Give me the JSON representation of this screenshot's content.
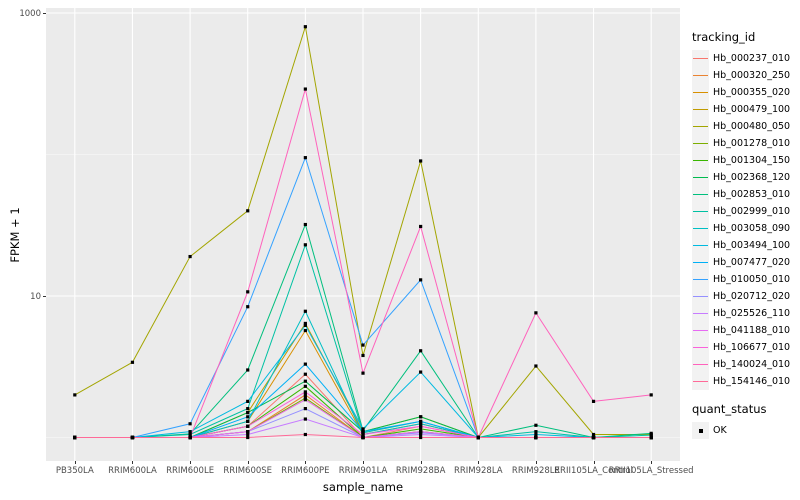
{
  "figure": {
    "y_ticks": [
      "1000",
      "10"
    ],
    "y_tick_values": [
      1000,
      10
    ]
  },
  "colors": {
    "panel_background": "#EBEBEB",
    "grid_major": "#FFFFFF",
    "grid_minor": "#F7F7F7",
    "point": "#000000",
    "axis_text": "#4D4D4D",
    "tick_mark": "#333333"
  },
  "chart_data": {
    "type": "line",
    "title": "",
    "xlabel": "sample_name",
    "ylabel": "FPKM + 1",
    "yscale": "log10",
    "ylim": [
      0.85,
      1200
    ],
    "yticks_labeled": [
      10,
      1000
    ],
    "grid_minor_at": [
      1,
      100
    ],
    "grid": "on",
    "point_shape": "small-black-square",
    "legend": {
      "title": "tracking_id",
      "position": "right"
    },
    "quant_legend": {
      "title": "quant_status",
      "items": [
        "OK"
      ]
    },
    "x": [
      "PB350LA",
      "RRIM600LA",
      "RRIM600LE",
      "RRIM600SE",
      "RRIM600PE",
      "RRIM901LA",
      "RRIM928BA",
      "RRIM928LA",
      "RRIM928LE",
      "RRII105LA_Control",
      "RRII105LA_Stressed"
    ],
    "series": [
      {
        "name": "Hb_000237_010",
        "color": "#F8766D",
        "values": [
          1,
          1,
          1,
          1.2,
          2.8,
          1,
          1.2,
          1,
          1,
          1,
          1
        ]
      },
      {
        "name": "Hb_000320_250",
        "color": "#EA8331",
        "values": [
          1,
          1,
          1,
          1.1,
          2.0,
          1,
          1.1,
          1,
          1,
          1,
          1
        ]
      },
      {
        "name": "Hb_000355_020",
        "color": "#D89000",
        "values": [
          1,
          1,
          1,
          1.3,
          5.7,
          1.05,
          1.25,
          1,
          1,
          1,
          1
        ]
      },
      {
        "name": "Hb_000479_100",
        "color": "#C09B00",
        "values": [
          1,
          1,
          1,
          1.5,
          6.4,
          1.1,
          1.4,
          1,
          1,
          1,
          1
        ]
      },
      {
        "name": "Hb_000480_050",
        "color": "#A3A500",
        "values": [
          2.0,
          3.4,
          19,
          40,
          800,
          3.8,
          90,
          1,
          3.2,
          1.05,
          1.05
        ]
      },
      {
        "name": "Hb_001278_010",
        "color": "#7CAE00",
        "values": [
          1,
          1,
          1,
          1.1,
          1.9,
          1,
          1.1,
          1,
          1,
          1,
          1
        ]
      },
      {
        "name": "Hb_001304_150",
        "color": "#39B600",
        "values": [
          1,
          1,
          1,
          1.2,
          2.3,
          1,
          1.15,
          1,
          1,
          1,
          1
        ]
      },
      {
        "name": "Hb_002368_120",
        "color": "#00BB4E",
        "values": [
          1,
          1,
          1,
          1.5,
          2.5,
          1.1,
          1.4,
          1,
          1,
          1,
          1
        ]
      },
      {
        "name": "Hb_002853_010",
        "color": "#00BF7D",
        "values": [
          1,
          1,
          1.06,
          3.0,
          32,
          1.12,
          4.1,
          1,
          1.22,
          1,
          1.07
        ]
      },
      {
        "name": "Hb_002999_010",
        "color": "#00C1A3",
        "values": [
          1,
          1,
          1.05,
          1.6,
          23,
          1.08,
          1.3,
          1,
          1.1,
          1,
          1.04
        ]
      },
      {
        "name": "Hb_003058_090",
        "color": "#00BFC4",
        "values": [
          1,
          1,
          1,
          1.3,
          7.8,
          1.05,
          1.25,
          1,
          1,
          1,
          1
        ]
      },
      {
        "name": "Hb_003494_100",
        "color": "#00BAE0",
        "values": [
          1,
          1,
          1.1,
          1.8,
          6.2,
          1.15,
          2.9,
          1,
          1.05,
          1,
          1
        ]
      },
      {
        "name": "Hb_007477_020",
        "color": "#00B0F6",
        "values": [
          1,
          1,
          1,
          1.4,
          3.3,
          1.1,
          1.3,
          1,
          1,
          1,
          1
        ]
      },
      {
        "name": "Hb_010050_010",
        "color": "#35A2FF",
        "values": [
          1,
          1,
          1.25,
          8.4,
          95,
          4.5,
          13,
          1,
          1,
          1,
          1
        ]
      },
      {
        "name": "Hb_020712_020",
        "color": "#9590FF",
        "values": [
          1,
          1,
          1,
          1.1,
          1.6,
          1,
          1.08,
          1,
          1,
          1,
          1
        ]
      },
      {
        "name": "Hb_025526_110",
        "color": "#C77CFF",
        "values": [
          1,
          1,
          1,
          1.05,
          1.35,
          1,
          1.05,
          1,
          1,
          1,
          1
        ]
      },
      {
        "name": "Hb_041188_010",
        "color": "#E76BF3",
        "values": [
          1,
          1,
          1,
          1.1,
          1.85,
          1,
          1.1,
          1,
          1,
          1,
          1
        ]
      },
      {
        "name": "Hb_106677_010",
        "color": "#FA62DB",
        "values": [
          1,
          1,
          1,
          1.2,
          2.1,
          1.05,
          1.2,
          1,
          1,
          1,
          1
        ]
      },
      {
        "name": "Hb_140024_010",
        "color": "#FF62BC",
        "values": [
          1,
          1,
          1,
          10.7,
          290,
          2.85,
          31,
          1,
          7.6,
          1.8,
          2.0
        ]
      },
      {
        "name": "Hb_154146_010",
        "color": "#FF6A98",
        "values": [
          1,
          1,
          1,
          1,
          1.05,
          1,
          1,
          1,
          1,
          1,
          1
        ]
      }
    ]
  }
}
